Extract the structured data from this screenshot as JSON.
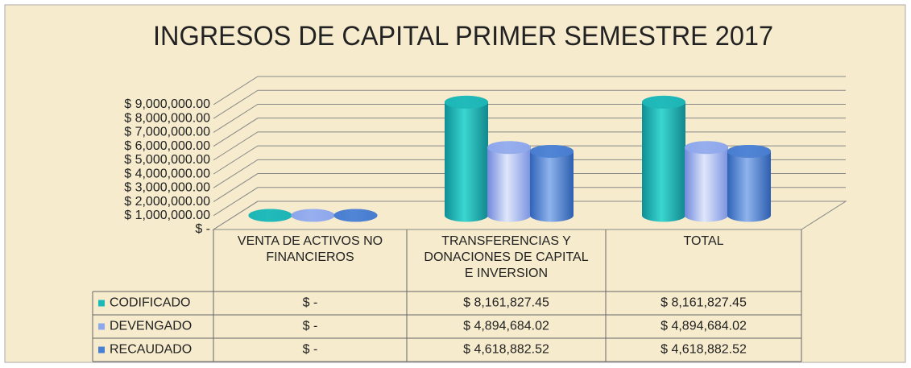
{
  "chart_data": {
    "type": "cylinder",
    "title": "INGRESOS DE CAPITAL  PRIMER SEMESTRE 2017",
    "categories": [
      "VENTA DE ACTIVOS NO FINANCIEROS",
      "TRANSFERENCIAS Y DONACIONES DE CAPITAL E INVERSION",
      "TOTAL"
    ],
    "series": [
      {
        "name": "CODIFICADO",
        "color": "#1fb8b8",
        "values": [
          0,
          8161827.45,
          8161827.45
        ],
        "value_labels": [
          "$ -",
          "$ 8,161,827.45",
          "$ 8,161,827.45"
        ]
      },
      {
        "name": "DEVENGADO",
        "color": "#8fa8ec",
        "values": [
          0,
          4894684.02,
          4894684.02
        ],
        "value_labels": [
          "$ -",
          "$ 4,894,684.02",
          "$ 4,894,684.02"
        ]
      },
      {
        "name": "RECAUDADO",
        "color": "#4a80d2",
        "values": [
          0,
          4618882.52,
          4618882.52
        ],
        "value_labels": [
          "$ -",
          "$ 4,618,882.52",
          "$ 4,618,882.52"
        ]
      }
    ],
    "ylim": [
      0,
      9000000
    ],
    "yticks": [
      {
        "value": 0,
        "label": "$ -"
      },
      {
        "value": 1000000,
        "label": "$ 1,000,000.00"
      },
      {
        "value": 2000000,
        "label": "$ 2,000,000.00"
      },
      {
        "value": 3000000,
        "label": "$ 3,000,000.00"
      },
      {
        "value": 4000000,
        "label": "$ 4,000,000.00"
      },
      {
        "value": 5000000,
        "label": "$ 5,000,000.00"
      },
      {
        "value": 6000000,
        "label": "$ 6,000,000.00"
      },
      {
        "value": 7000000,
        "label": "$ 7,000,000.00"
      },
      {
        "value": 8000000,
        "label": "$ 8,000,000.00"
      },
      {
        "value": 9000000,
        "label": "$ 9,000,000.00"
      }
    ],
    "grid": true
  }
}
